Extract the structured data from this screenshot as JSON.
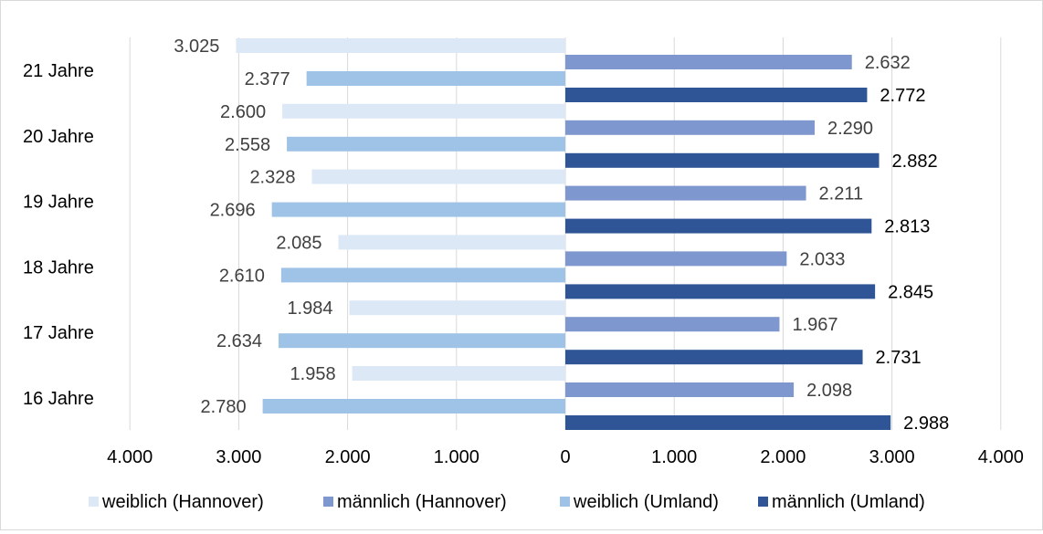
{
  "chart_data": {
    "type": "bar",
    "orientation": "horizontal",
    "categories": [
      "21 Jahre",
      "20 Jahre",
      "19 Jahre",
      "18 Jahre",
      "17 Jahre",
      "16 Jahre"
    ],
    "series": [
      {
        "name": "weiblich (Hannover)",
        "side": "left",
        "color": "#dce8f6",
        "values": [
          3025,
          2600,
          2328,
          2085,
          1984,
          1958
        ],
        "labels": [
          "3.025",
          "2.600",
          "2.328",
          "2.085",
          "1.984",
          "1.958"
        ]
      },
      {
        "name": "männlich (Hannover)",
        "side": "right",
        "color": "#7f97cf",
        "values": [
          2632,
          2290,
          2211,
          2033,
          1967,
          2098
        ],
        "labels": [
          "2.632",
          "2.290",
          "2.211",
          "2.033",
          "1.967",
          "2.098"
        ]
      },
      {
        "name": "weiblich (Umland)",
        "side": "left",
        "color": "#9ec3e6",
        "values": [
          2377,
          2558,
          2696,
          2610,
          2634,
          2780
        ],
        "labels": [
          "2.377",
          "2.558",
          "2.696",
          "2.610",
          "2.634",
          "2.780"
        ]
      },
      {
        "name": "männlich (Umland)",
        "side": "right",
        "color": "#2f5597",
        "values": [
          2772,
          2882,
          2813,
          2845,
          2731,
          2988
        ],
        "labels": [
          "2.772",
          "2.882",
          "2.813",
          "2.845",
          "2.731",
          "2.988"
        ]
      }
    ],
    "xlim": [
      -4000,
      4000
    ],
    "x_ticks": [
      "4.000",
      "3.000",
      "2.000",
      "1.000",
      "0",
      "1.000",
      "2.000",
      "3.000",
      "4.000"
    ],
    "grid": "vertical",
    "legend_position": "bottom"
  }
}
